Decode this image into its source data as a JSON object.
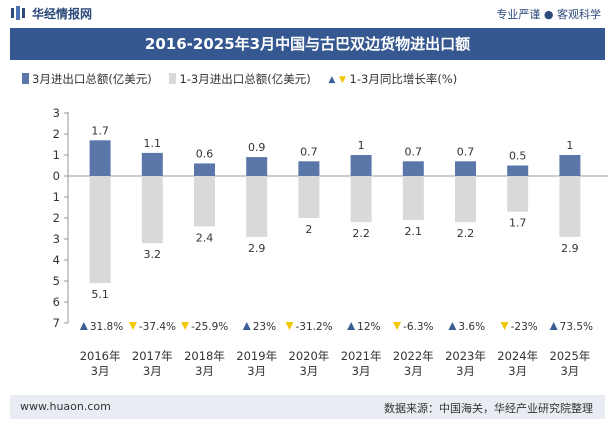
{
  "header": {
    "site_name": "华经情报网",
    "tagline": "专业严谨 ● 客观科学"
  },
  "colors": {
    "march": "#5b77aa",
    "cumulative": "#d9d9d9",
    "up": "#3a5e95",
    "down": "#f2c600",
    "band": "#34588f"
  },
  "chart_data": {
    "type": "bar",
    "title": "2016-2025年3月中国与古巴双边货物进出口额",
    "categories": [
      "2016年\n3月",
      "2017年\n3月",
      "2018年\n3月",
      "2019年\n3月",
      "2020年\n3月",
      "2021年\n3月",
      "2022年\n3月",
      "2023年\n3月",
      "2024年\n3月",
      "2025年\n3月"
    ],
    "series": [
      {
        "name": "3月进出口总额(亿美元)",
        "values": [
          1.7,
          1.1,
          0.6,
          0.9,
          0.7,
          1,
          0.7,
          0.7,
          0.5,
          1
        ]
      },
      {
        "name": "1-3月进出口总额(亿美元)",
        "values": [
          5.1,
          3.2,
          2.4,
          2.9,
          2,
          2.2,
          2.1,
          2.2,
          1.7,
          2.9
        ]
      },
      {
        "name": "1-3月同比增长率(%)",
        "values": [
          31.8,
          -37.4,
          -25.9,
          23,
          -31.2,
          12,
          -6.3,
          3.6,
          -23,
          73.5
        ]
      }
    ],
    "growth_labels": [
      "31.8%",
      "-37.4%",
      "-25.9%",
      "23%",
      "-31.2%",
      "12%",
      "-6.3%",
      "3.6%",
      "-23%",
      "73.5%"
    ],
    "y_ticks_up": [
      "3",
      "2",
      "1",
      "0"
    ],
    "y_ticks_down": [
      "1",
      "2",
      "3",
      "4",
      "5",
      "6",
      "7"
    ],
    "ylim_up": [
      0,
      3
    ],
    "ylim_down": [
      0,
      7
    ],
    "legend_position": "top-left"
  },
  "footer": {
    "url": "www.huaon.com",
    "source": "数据来源：中国海关，华经产业研究院整理"
  }
}
